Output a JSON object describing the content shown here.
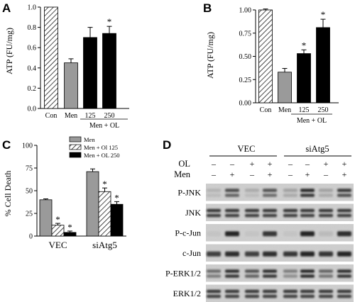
{
  "chart_data": [
    {
      "panel": "A",
      "type": "bar",
      "ylabel": "ATP (FU/mg)",
      "ylim": [
        0,
        1.0
      ],
      "yticks": [
        "0.0",
        "0.2",
        "0.4",
        "0.6",
        "0.8",
        "1.0"
      ],
      "categories": [
        "Con",
        "Men",
        "125",
        "250"
      ],
      "group_label": "Men + OL",
      "values": [
        1.0,
        0.45,
        0.7,
        0.74
      ],
      "errors": [
        0,
        0.04,
        0.1,
        0.07
      ],
      "patterns": [
        "hatched",
        "gray",
        "black",
        "black"
      ],
      "significant": [
        false,
        false,
        false,
        true
      ],
      "significance_mark": "*"
    },
    {
      "panel": "B",
      "type": "bar",
      "ylabel": "ATP (FU/mg)",
      "ylim": [
        0,
        1.0
      ],
      "yticks": [
        "0.00",
        "0.25",
        "0.50",
        "0.75",
        "1.00"
      ],
      "categories": [
        "Con",
        "Men",
        "125",
        "250"
      ],
      "group_label": "Men + OL",
      "values": [
        1.0,
        0.33,
        0.53,
        0.81
      ],
      "errors": [
        0.01,
        0.04,
        0.04,
        0.09
      ],
      "patterns": [
        "hatched",
        "gray",
        "black",
        "black"
      ],
      "significant": [
        false,
        false,
        true,
        true
      ],
      "significance_mark": "*"
    },
    {
      "panel": "C",
      "type": "bar",
      "ylabel": "% Cell Death",
      "ylim": [
        0,
        100
      ],
      "yticks": [
        "0",
        "25",
        "50",
        "75",
        "100"
      ],
      "categories": [
        "VEC",
        "siAtg5"
      ],
      "series": [
        {
          "name": "Men",
          "pattern": "gray",
          "values": [
            40,
            71
          ],
          "errors": [
            1,
            3
          ],
          "significant": [
            false,
            false
          ]
        },
        {
          "name": "Men + Ol 125",
          "pattern": "hatched",
          "values": [
            12,
            49
          ],
          "errors": [
            2,
            4
          ],
          "significant": [
            true,
            true
          ]
        },
        {
          "name": "Men + OL 250",
          "pattern": "black",
          "values": [
            4,
            35
          ],
          "errors": [
            1.5,
            3
          ],
          "significant": [
            true,
            true
          ]
        }
      ],
      "significance_mark": "*"
    }
  ],
  "blot": {
    "panel": "D",
    "groups": [
      "VEC",
      "siAtg5"
    ],
    "row_labels": {
      "ol": "OL",
      "men": "Men"
    },
    "ol_signs": [
      "–",
      "–",
      "+",
      "+",
      "–",
      "–",
      "+",
      "+"
    ],
    "men_signs": [
      "–",
      "+",
      "–",
      "+",
      "–",
      "+",
      "–",
      "+"
    ],
    "rows": [
      "P-JNK",
      "JNK",
      "P-c-Jun",
      "c-Jun",
      "P-ERK1/2",
      "ERK1/2"
    ]
  },
  "colors": {
    "gray_bar": "#9a9a9a",
    "black_bar": "#000000",
    "blot_bg": "#cfcfcf",
    "band": "#1a1a1a"
  }
}
